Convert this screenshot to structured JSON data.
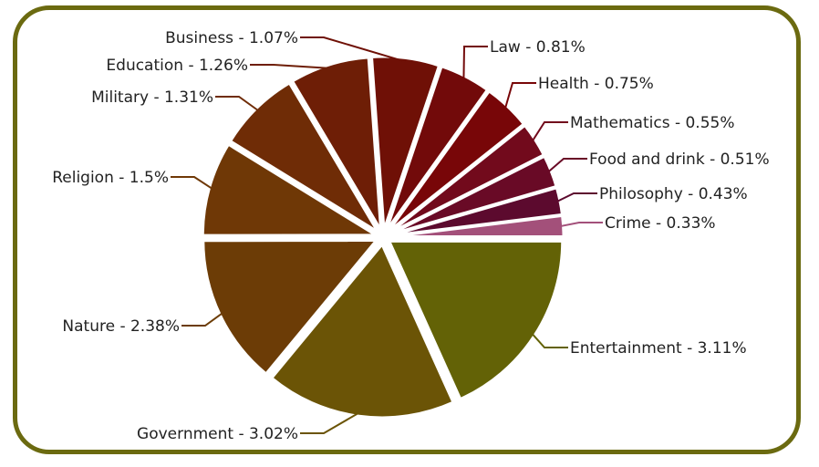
{
  "chart_data": {
    "type": "pie",
    "title": "",
    "slices": [
      {
        "label": "Crime - 0.33%",
        "value": 0.33,
        "color": "#a3507a"
      },
      {
        "label": "Philosophy - 0.43%",
        "value": 0.43,
        "color": "#5c0a2e"
      },
      {
        "label": "Food and drink - 0.51%",
        "value": 0.51,
        "color": "#690a26"
      },
      {
        "label": "Mathematics - 0.55%",
        "value": 0.55,
        "color": "#720a1c"
      },
      {
        "label": "Health - 0.75%",
        "value": 0.75,
        "color": "#780608"
      },
      {
        "label": "Law - 0.81%",
        "value": 0.81,
        "color": "#720a0a"
      },
      {
        "label": "Business - 1.07%",
        "value": 1.07,
        "color": "#6f1006"
      },
      {
        "label": "Education - 1.26%",
        "value": 1.26,
        "color": "#6e1e06"
      },
      {
        "label": "Military - 1.31%",
        "value": 1.31,
        "color": "#6f2c06"
      },
      {
        "label": "Religion - 1.5%",
        "value": 1.5,
        "color": "#6f3806"
      },
      {
        "label": "Nature - 2.38%",
        "value": 2.38,
        "color": "#6c3c06"
      },
      {
        "label": "Government - 3.02%",
        "value": 3.02,
        "color": "#6b5406"
      },
      {
        "label": "Entertainment - 3.11%",
        "value": 3.11,
        "color": "#636206"
      }
    ]
  }
}
